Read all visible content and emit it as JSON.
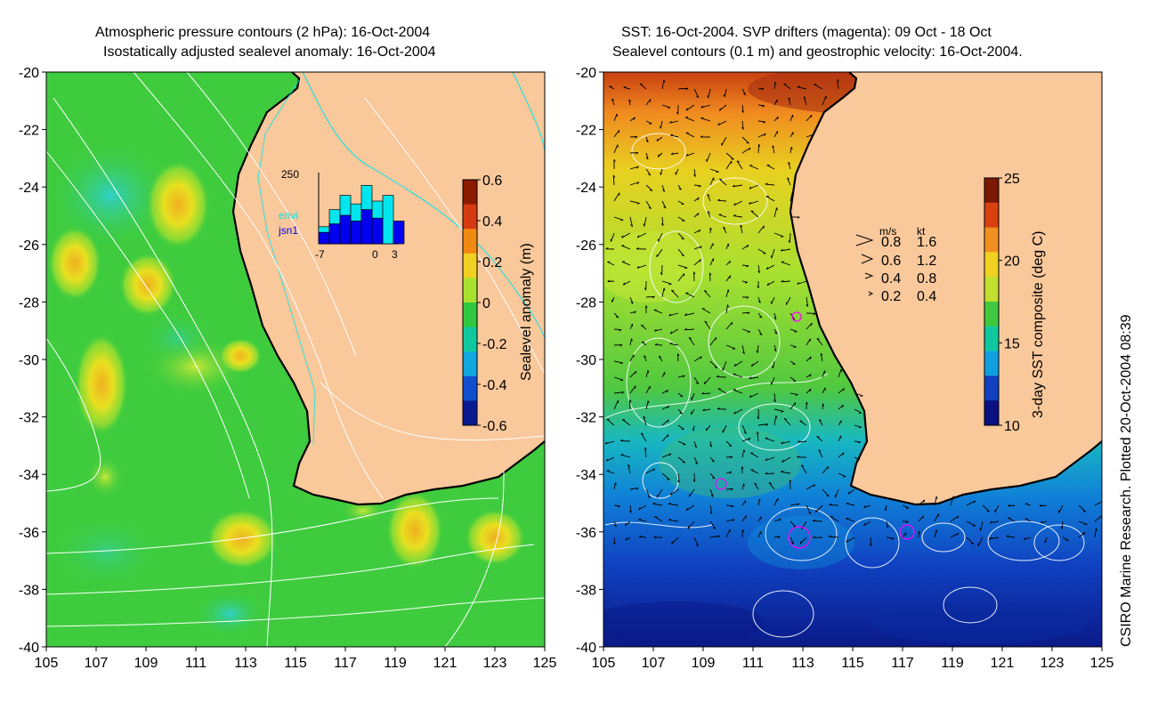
{
  "left_map": {
    "title_line1": "Atmospheric pressure contours (2 hPa): 16-Oct-2004",
    "title_line2": "Isostatically adjusted sealevel anomaly: 16-Oct-2004",
    "colorbar": {
      "label": "Sealevel anomaly (m)",
      "ticks": [
        "0.6",
        "0.4",
        "0.2",
        "0",
        "-0.2",
        "-0.4",
        "-0.6"
      ],
      "colors": [
        "#8b1a00",
        "#d63a10",
        "#f08a10",
        "#f0d020",
        "#a8e030",
        "#30c840",
        "#10c8a0",
        "#10a8e0",
        "#1050d0",
        "#0a1a90"
      ]
    },
    "inset": {
      "ymax_label": "250",
      "legend": [
        {
          "label": "envi",
          "color": "#00e5ee"
        },
        {
          "label": "jsn1",
          "color": "#0000ee"
        }
      ],
      "x_ticks": [
        "-7",
        "0",
        "3"
      ],
      "envi_values": [
        60,
        120,
        170,
        140,
        205,
        150,
        170
      ],
      "jsn1_values": [
        40,
        70,
        100,
        80,
        120,
        90,
        0,
        80
      ],
      "ymax": 250
    }
  },
  "right_map": {
    "title_line1": "SST: 16-Oct-2004. SVP drifters (magenta): 09 Oct - 18 Oct",
    "title_line2": "Sealevel contours (0.1 m) and geostrophic velocity: 16-Oct-2004.",
    "colorbar": {
      "label": "3-day SST composite (deg C)",
      "ticks": [
        "25",
        "20",
        "15",
        "10"
      ],
      "colors": [
        "#7a1800",
        "#d84010",
        "#f09020",
        "#f0d020",
        "#c0e030",
        "#40c840",
        "#10c8a0",
        "#10a0e0",
        "#1040c0",
        "#0a1080"
      ]
    },
    "velocity_legend": {
      "header_ms": "m/s",
      "header_kt": "kt",
      "rows": [
        {
          "ms": "0.8",
          "kt": "1.6"
        },
        {
          "ms": "0.6",
          "kt": "1.2"
        },
        {
          "ms": "0.4",
          "kt": "0.8"
        },
        {
          "ms": "0.2",
          "kt": "0.4"
        }
      ]
    }
  },
  "axes": {
    "lon_ticks": [
      "105",
      "107",
      "109",
      "111",
      "113",
      "115",
      "117",
      "119",
      "121",
      "123",
      "125"
    ],
    "lat_ticks": [
      "-20",
      "-22",
      "-24",
      "-26",
      "-28",
      "-30",
      "-32",
      "-34",
      "-36",
      "-38",
      "-40"
    ],
    "lon_range": [
      105,
      125
    ],
    "lat_range": [
      -40,
      -20
    ]
  },
  "land_color": "#f9c89b",
  "ocean_color_left": "#3ecc3e",
  "credit": "CSIRO Marine Research. Plotted 20-Oct-2004 08:39"
}
